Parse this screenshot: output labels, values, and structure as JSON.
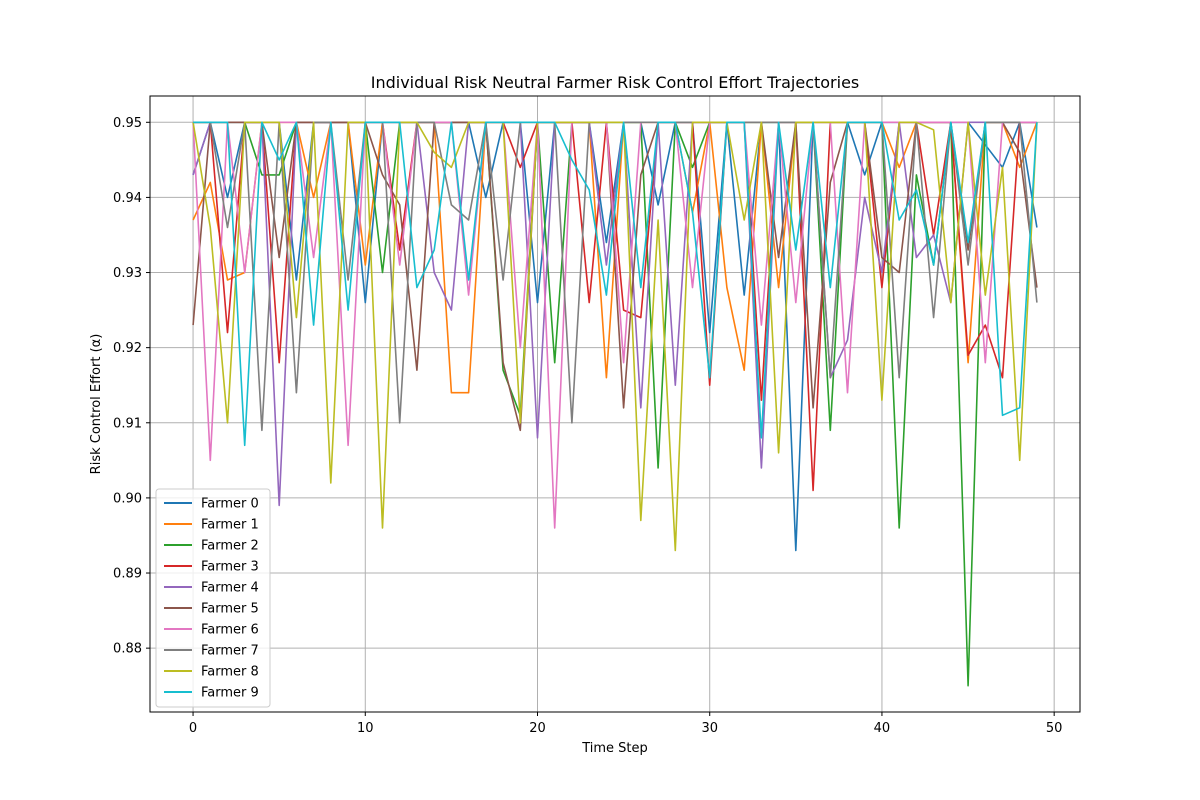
{
  "chart_data": {
    "type": "line",
    "title": "Individual Risk Neutral Farmer Risk Control Effort Trajectories",
    "xlabel": "Time Step",
    "ylabel": "Risk Control Effort (α)",
    "xlim": [
      -2.5,
      51.5
    ],
    "ylim": [
      0.8715,
      0.9535
    ],
    "xticks": [
      0,
      10,
      20,
      30,
      40,
      50
    ],
    "yticks": [
      0.88,
      0.89,
      0.9,
      0.91,
      0.92,
      0.93,
      0.94,
      0.95
    ],
    "ytick_labels": [
      "0.88",
      "0.89",
      "0.90",
      "0.91",
      "0.92",
      "0.93",
      "0.94",
      "0.95"
    ],
    "grid": true,
    "legend_position": "lower-left",
    "x": [
      0,
      1,
      2,
      3,
      4,
      5,
      6,
      7,
      8,
      9,
      10,
      11,
      12,
      13,
      14,
      15,
      16,
      17,
      18,
      19,
      20,
      21,
      22,
      23,
      24,
      25,
      26,
      27,
      28,
      29,
      30,
      31,
      32,
      33,
      34,
      35,
      36,
      37,
      38,
      39,
      40,
      41,
      42,
      43,
      44,
      45,
      46,
      47,
      48,
      49
    ],
    "series": [
      {
        "name": "Farmer 0",
        "color": "#1f77b4",
        "values": [
          0.943,
          0.95,
          0.94,
          0.95,
          0.95,
          0.95,
          0.929,
          0.95,
          0.95,
          0.95,
          0.926,
          0.95,
          0.95,
          0.95,
          0.95,
          0.95,
          0.95,
          0.94,
          0.95,
          0.95,
          0.926,
          0.95,
          0.95,
          0.95,
          0.934,
          0.95,
          0.95,
          0.939,
          0.95,
          0.95,
          0.922,
          0.95,
          0.927,
          0.95,
          0.95,
          0.893,
          0.95,
          0.95,
          0.95,
          0.943,
          0.95,
          0.95,
          0.95,
          0.95,
          0.95,
          0.95,
          0.947,
          0.944,
          0.95,
          0.936
        ]
      },
      {
        "name": "Farmer 1",
        "color": "#ff7f0e",
        "values": [
          0.937,
          0.942,
          0.929,
          0.93,
          0.95,
          0.95,
          0.95,
          0.94,
          0.95,
          0.95,
          0.931,
          0.95,
          0.95,
          0.95,
          0.95,
          0.914,
          0.914,
          0.95,
          0.95,
          0.95,
          0.95,
          0.95,
          0.95,
          0.95,
          0.916,
          0.95,
          0.95,
          0.95,
          0.95,
          0.938,
          0.95,
          0.928,
          0.917,
          0.95,
          0.928,
          0.95,
          0.95,
          0.95,
          0.95,
          0.95,
          0.95,
          0.944,
          0.95,
          0.95,
          0.95,
          0.918,
          0.95,
          0.95,
          0.944,
          0.95
        ]
      },
      {
        "name": "Farmer 2",
        "color": "#2ca02c",
        "values": [
          0.95,
          0.95,
          0.95,
          0.95,
          0.943,
          0.943,
          0.95,
          0.95,
          0.95,
          0.95,
          0.95,
          0.93,
          0.95,
          0.95,
          0.95,
          0.95,
          0.95,
          0.95,
          0.917,
          0.911,
          0.95,
          0.918,
          0.95,
          0.95,
          0.95,
          0.95,
          0.95,
          0.904,
          0.95,
          0.944,
          0.95,
          0.95,
          0.95,
          0.95,
          0.95,
          0.95,
          0.95,
          0.909,
          0.95,
          0.95,
          0.95,
          0.896,
          0.943,
          0.931,
          0.95,
          0.875,
          0.95,
          0.95,
          0.95,
          0.95
        ]
      },
      {
        "name": "Farmer 3",
        "color": "#d62728",
        "values": [
          0.95,
          0.95,
          0.922,
          0.95,
          0.95,
          0.918,
          0.95,
          0.95,
          0.95,
          0.95,
          0.95,
          0.95,
          0.933,
          0.95,
          0.95,
          0.95,
          0.95,
          0.95,
          0.95,
          0.944,
          0.95,
          0.95,
          0.95,
          0.926,
          0.95,
          0.925,
          0.924,
          0.95,
          0.95,
          0.95,
          0.915,
          0.95,
          0.95,
          0.913,
          0.95,
          0.95,
          0.901,
          0.95,
          0.95,
          0.95,
          0.928,
          0.95,
          0.95,
          0.935,
          0.95,
          0.919,
          0.923,
          0.916,
          0.95,
          0.95
        ]
      },
      {
        "name": "Farmer 4",
        "color": "#9467bd",
        "values": [
          0.943,
          0.95,
          0.95,
          0.95,
          0.95,
          0.899,
          0.95,
          0.95,
          0.95,
          0.95,
          0.95,
          0.95,
          0.95,
          0.95,
          0.93,
          0.925,
          0.95,
          0.95,
          0.95,
          0.95,
          0.908,
          0.95,
          0.95,
          0.95,
          0.931,
          0.95,
          0.912,
          0.95,
          0.915,
          0.95,
          0.95,
          0.95,
          0.95,
          0.904,
          0.95,
          0.95,
          0.95,
          0.916,
          0.921,
          0.94,
          0.93,
          0.95,
          0.932,
          0.935,
          0.926,
          0.95,
          0.95,
          0.95,
          0.95,
          0.95
        ]
      },
      {
        "name": "Farmer 5",
        "color": "#8c564b",
        "values": [
          0.923,
          0.95,
          0.95,
          0.95,
          0.95,
          0.932,
          0.95,
          0.95,
          0.95,
          0.95,
          0.95,
          0.943,
          0.939,
          0.917,
          0.95,
          0.95,
          0.95,
          0.95,
          0.918,
          0.909,
          0.95,
          0.95,
          0.95,
          0.95,
          0.95,
          0.912,
          0.943,
          0.95,
          0.95,
          0.95,
          0.95,
          0.95,
          0.95,
          0.95,
          0.932,
          0.95,
          0.912,
          0.942,
          0.95,
          0.95,
          0.932,
          0.93,
          0.95,
          0.95,
          0.95,
          0.933,
          0.95,
          0.95,
          0.946,
          0.928
        ]
      },
      {
        "name": "Farmer 6",
        "color": "#e377c2",
        "values": [
          0.95,
          0.905,
          0.95,
          0.93,
          0.95,
          0.95,
          0.95,
          0.932,
          0.95,
          0.907,
          0.95,
          0.95,
          0.931,
          0.95,
          0.95,
          0.95,
          0.927,
          0.95,
          0.95,
          0.92,
          0.95,
          0.896,
          0.95,
          0.95,
          0.95,
          0.918,
          0.95,
          0.95,
          0.95,
          0.928,
          0.95,
          0.95,
          0.95,
          0.923,
          0.95,
          0.926,
          0.95,
          0.95,
          0.914,
          0.95,
          0.95,
          0.95,
          0.95,
          0.95,
          0.95,
          0.95,
          0.918,
          0.95,
          0.95,
          0.95
        ]
      },
      {
        "name": "Farmer 7",
        "color": "#7f7f7f",
        "values": [
          0.95,
          0.95,
          0.936,
          0.95,
          0.909,
          0.95,
          0.914,
          0.95,
          0.95,
          0.929,
          0.95,
          0.95,
          0.91,
          0.95,
          0.95,
          0.939,
          0.937,
          0.95,
          0.929,
          0.95,
          0.95,
          0.95,
          0.91,
          0.95,
          0.95,
          0.95,
          0.95,
          0.95,
          0.95,
          0.95,
          0.95,
          0.95,
          0.95,
          0.95,
          0.95,
          0.95,
          0.95,
          0.916,
          0.95,
          0.95,
          0.95,
          0.916,
          0.95,
          0.924,
          0.95,
          0.931,
          0.95,
          0.95,
          0.95,
          0.926
        ]
      },
      {
        "name": "Farmer 8",
        "color": "#bcbd22",
        "values": [
          0.95,
          0.936,
          0.91,
          0.95,
          0.95,
          0.95,
          0.924,
          0.95,
          0.902,
          0.95,
          0.95,
          0.896,
          0.95,
          0.95,
          0.946,
          0.944,
          0.95,
          0.95,
          0.95,
          0.91,
          0.95,
          0.95,
          0.95,
          0.95,
          0.95,
          0.95,
          0.897,
          0.937,
          0.893,
          0.95,
          0.95,
          0.95,
          0.937,
          0.95,
          0.906,
          0.95,
          0.95,
          0.95,
          0.95,
          0.95,
          0.913,
          0.95,
          0.95,
          0.949,
          0.926,
          0.95,
          0.927,
          0.944,
          0.905,
          0.95
        ]
      },
      {
        "name": "Farmer 9",
        "color": "#17becf",
        "values": [
          0.95,
          0.95,
          0.95,
          0.907,
          0.95,
          0.945,
          0.95,
          0.923,
          0.95,
          0.925,
          0.95,
          0.95,
          0.95,
          0.928,
          0.933,
          0.95,
          0.929,
          0.95,
          0.95,
          0.95,
          0.95,
          0.95,
          0.945,
          0.941,
          0.927,
          0.95,
          0.928,
          0.95,
          0.95,
          0.938,
          0.916,
          0.95,
          0.95,
          0.908,
          0.95,
          0.933,
          0.95,
          0.928,
          0.95,
          0.95,
          0.95,
          0.937,
          0.941,
          0.931,
          0.95,
          0.934,
          0.95,
          0.911,
          0.912,
          0.95
        ]
      }
    ]
  }
}
